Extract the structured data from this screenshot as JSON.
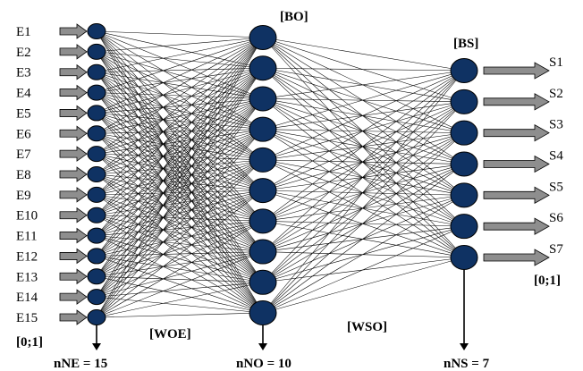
{
  "inputs": [
    "E1",
    "E2",
    "E3",
    "E4",
    "E5",
    "E6",
    "E7",
    "E8",
    "E9",
    "E10",
    "E11",
    "E12",
    "E13",
    "E14",
    "E15"
  ],
  "outputs": [
    "S1",
    "S2",
    "S3",
    "S4",
    "S5",
    "S6",
    "S7"
  ],
  "hidden_count": 10,
  "labels": {
    "bias_hidden": "[BO]",
    "bias_output": "[BS]",
    "weights_input_hidden": "[WOE]",
    "weights_hidden_output": "[WSO]",
    "input_range": "[0;1]",
    "output_range": "[0;1]",
    "n_inputs": "nNE = 15",
    "n_hidden": "nNO = 10",
    "n_outputs": "nNS = 7"
  },
  "colors": {
    "node": "#0f3263",
    "arrow": "#8e8e8e"
  }
}
